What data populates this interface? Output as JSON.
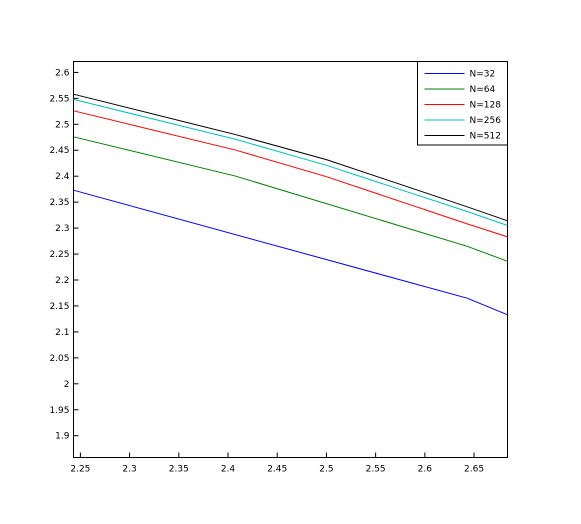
{
  "chart_data": {
    "type": "line",
    "title": "",
    "xlabel": "",
    "ylabel": "",
    "xlim": [
      2.243,
      2.684
    ],
    "ylim": [
      1.858,
      2.621
    ],
    "xticks": [
      "2.25",
      "2.3",
      "2.35",
      "2.4",
      "2.45",
      "2.5",
      "2.55",
      "2.6",
      "2.65"
    ],
    "yticks": [
      "1.9",
      "1.95",
      "2",
      "2.05",
      "2.1",
      "2.15",
      "2.2",
      "2.25",
      "2.3",
      "2.35",
      "2.4",
      "2.45",
      "2.5",
      "2.55",
      "2.6"
    ],
    "grid": false,
    "legend_position": "top-right",
    "series": [
      {
        "name": "N=32",
        "color": "#0000ff",
        "x": [
          2.243,
          2.643,
          2.684
        ],
        "y": [
          2.373,
          2.165,
          2.133
        ]
      },
      {
        "name": "N=64",
        "color": "#008000",
        "x": [
          2.243,
          2.408,
          2.643,
          2.684
        ],
        "y": [
          2.476,
          2.4,
          2.265,
          2.236
        ]
      },
      {
        "name": "N=128",
        "color": "#ff0000",
        "x": [
          2.243,
          2.408,
          2.5,
          2.643,
          2.684
        ],
        "y": [
          2.526,
          2.45,
          2.399,
          2.308,
          2.283
        ]
      },
      {
        "name": "N=256",
        "color": "#00bfbf",
        "x": [
          2.243,
          2.408,
          2.5,
          2.643,
          2.684
        ],
        "y": [
          2.548,
          2.471,
          2.421,
          2.332,
          2.305
        ]
      },
      {
        "name": "N=512",
        "color": "#000000",
        "x": [
          2.243,
          2.408,
          2.5,
          2.643,
          2.684
        ],
        "y": [
          2.558,
          2.48,
          2.432,
          2.341,
          2.314
        ]
      }
    ]
  }
}
